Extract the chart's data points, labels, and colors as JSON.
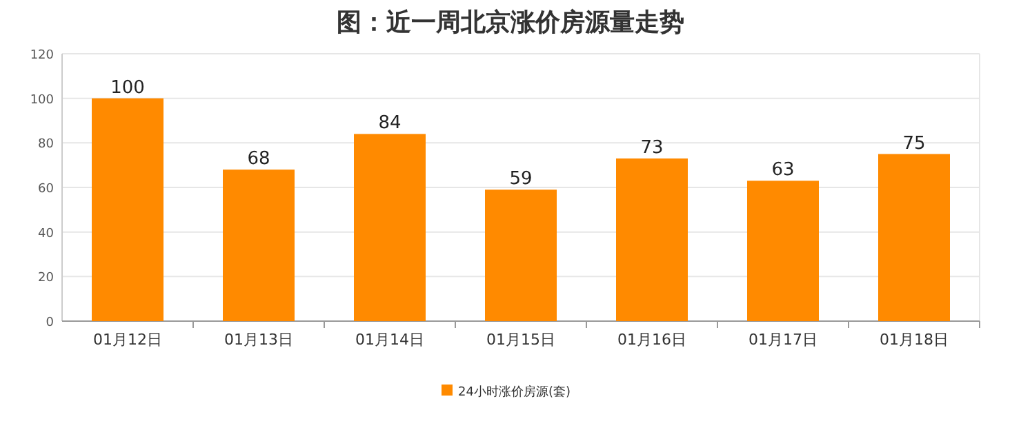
{
  "chart_data": {
    "type": "bar",
    "title": "图：近一周北京涨价房源量走势",
    "categories": [
      "01月12日",
      "01月13日",
      "01月14日",
      "01月15日",
      "01月16日",
      "01月17日",
      "01月18日"
    ],
    "series": [
      {
        "name": "24小时涨价房源(套)",
        "color": "#ff8a00",
        "values": [
          100,
          68,
          84,
          59,
          73,
          63,
          75
        ]
      }
    ],
    "ylim": [
      0,
      120
    ],
    "yticks": [
      0,
      20,
      40,
      60,
      80,
      100,
      120
    ],
    "grid": "y",
    "legend": "bottom",
    "data_labels": true
  }
}
